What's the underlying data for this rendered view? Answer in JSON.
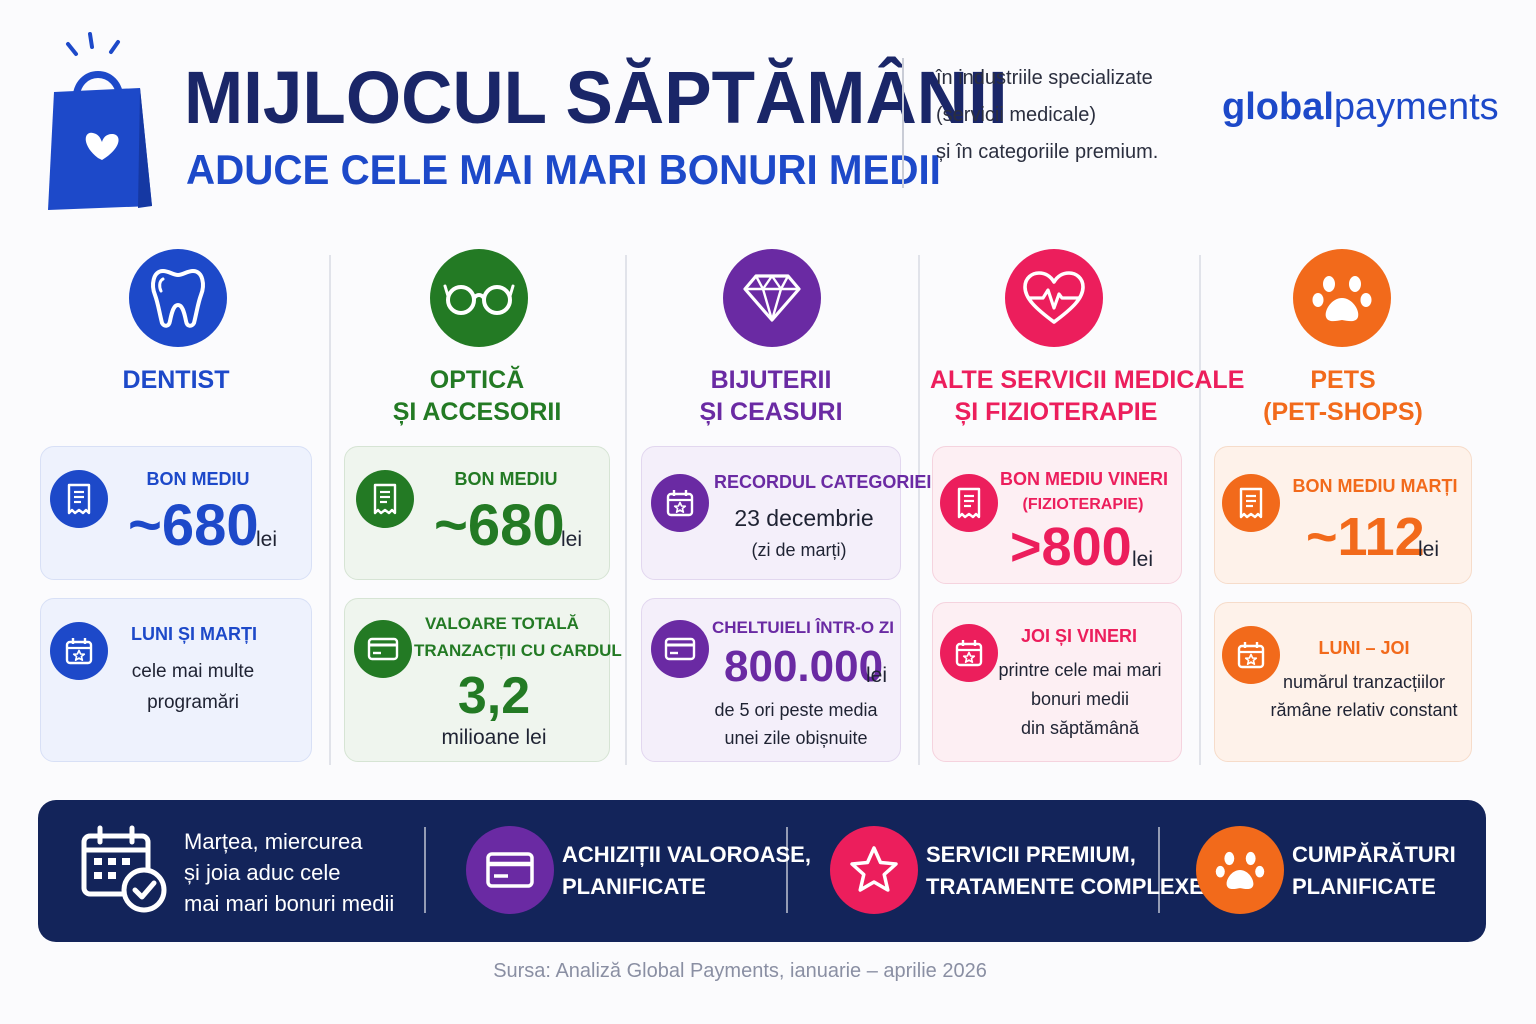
{
  "header": {
    "title": "MIJLOCUL SĂPTĂMÂNII",
    "subtitle": "ADUCE  CELE  MAI  MARI  BONURI  MEDII",
    "side_lines": [
      "în industriile specializate",
      "(servicii medicale)",
      "și în categoriile premium."
    ],
    "logo_bold": "global",
    "logo_light": "payments",
    "bag_icon": "shopping-bag-heart-icon"
  },
  "colors": {
    "navy": "#1a2668",
    "blue": "#1d49c9",
    "green": "#237a24",
    "purple": "#6a2aa3",
    "pink": "#ec1e5c",
    "orange": "#f26a1b",
    "band": "#13245a"
  },
  "categories": [
    {
      "name": [
        "DENTIST"
      ],
      "icon": "tooth-icon",
      "card1": {
        "icon": "receipt-icon",
        "label": "BON MEDIU",
        "value": "~680",
        "unit": "lei"
      },
      "card2": {
        "icon": "calendar-star-icon",
        "label": "LUNI ȘI MARȚI",
        "lines": [
          "cele mai multe",
          "programări"
        ]
      }
    },
    {
      "name": [
        "OPTICĂ",
        "ȘI ACCESORII"
      ],
      "icon": "glasses-icon",
      "card1": {
        "icon": "receipt-icon",
        "label": "BON MEDIU",
        "value": "~680",
        "unit": "lei"
      },
      "card2": {
        "icon": "credit-card-icon",
        "label_lines": [
          "VALOARE TOTALĂ",
          "TRANZACȚII CU CARDUL"
        ],
        "value": "3,2",
        "unit": "milioane lei"
      }
    },
    {
      "name": [
        "BIJUTERII",
        "ȘI CEASURI"
      ],
      "icon": "diamond-icon",
      "card1": {
        "icon": "calendar-star-icon",
        "label": "RECORDUL CATEGORIEI",
        "lines": [
          "23 decembrie",
          "(zi de marți)"
        ]
      },
      "card2": {
        "icon": "credit-card-icon",
        "label": "CHELTUIELI ÎNTR-O ZI",
        "value": "800.000",
        "unit": "lei",
        "lines": [
          "de 5 ori peste media",
          "unei zile obișnuite"
        ]
      }
    },
    {
      "name": [
        "ALTE SERVICII MEDICALE",
        "ȘI FIZIOTERAPIE"
      ],
      "icon": "heart-pulse-icon",
      "card1": {
        "icon": "receipt-icon",
        "label": "BON MEDIU VINERI",
        "sublabel": "(FIZIOTERAPIE)",
        "value": ">800",
        "unit": "lei"
      },
      "card2": {
        "icon": "calendar-star-icon",
        "label": "JOI ȘI VINERI",
        "lines": [
          "printre cele mai mari",
          "bonuri medii",
          "din săptămână"
        ]
      }
    },
    {
      "name": [
        "PETS",
        "(PET-SHOPS)"
      ],
      "icon": "paw-icon",
      "card1": {
        "icon": "receipt-icon",
        "label": "BON MEDIU MARȚI",
        "value": "~112",
        "unit": "lei"
      },
      "card2": {
        "icon": "calendar-star-icon",
        "label": "LUNI – JOI",
        "lines": [
          "numărul tranzacțiilor",
          "rămâne relativ constant"
        ]
      }
    }
  ],
  "band": [
    {
      "icon": "calendar-check-icon",
      "lines": [
        "Marțea, miercurea",
        "și joia aduc cele",
        "mai mari bonuri medii"
      ]
    },
    {
      "icon": "credit-card-icon",
      "lines": [
        "ACHIZIȚII VALOROASE,",
        "PLANIFICATE"
      ]
    },
    {
      "icon": "star-icon",
      "lines": [
        "SERVICII PREMIUM,",
        "TRATAMENTE COMPLEXE"
      ]
    },
    {
      "icon": "paw-icon",
      "lines": [
        "CUMPĂRĂTURI",
        "PLANIFICATE"
      ]
    }
  ],
  "source": "Sursa: Analiză Global Payments, ianuarie – aprilie 2026"
}
